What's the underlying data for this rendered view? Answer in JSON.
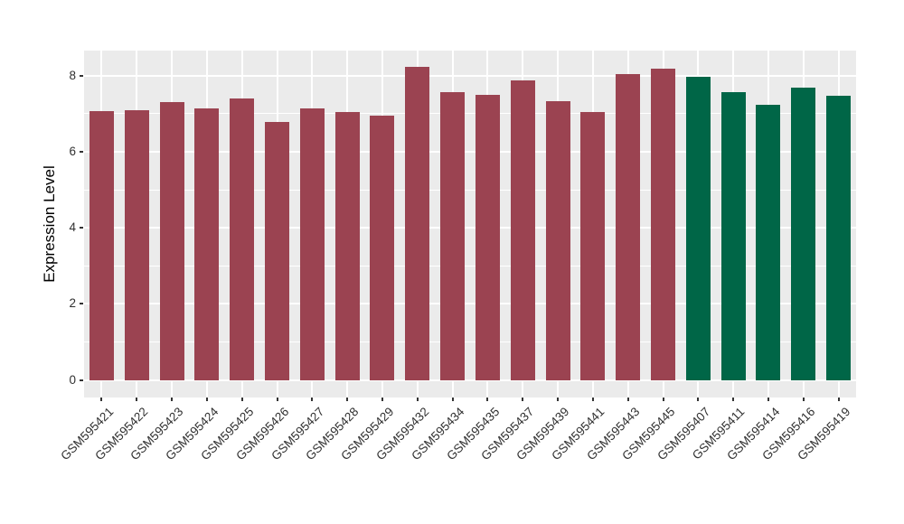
{
  "chart_data": {
    "type": "bar",
    "title": "",
    "xlabel": "",
    "ylabel": "Expression Level",
    "categories": [
      "GSM595421",
      "GSM595422",
      "GSM595423",
      "GSM595424",
      "GSM595425",
      "GSM595426",
      "GSM595427",
      "GSM595428",
      "GSM595429",
      "GSM595432",
      "GSM595434",
      "GSM595435",
      "GSM595437",
      "GSM595439",
      "GSM595441",
      "GSM595443",
      "GSM595445",
      "GSM595407",
      "GSM595411",
      "GSM595414",
      "GSM595416",
      "GSM595419"
    ],
    "values": [
      7.08,
      7.1,
      7.31,
      7.13,
      7.41,
      6.79,
      7.15,
      7.04,
      6.96,
      8.23,
      7.56,
      7.5,
      7.88,
      7.33,
      7.04,
      8.04,
      8.19,
      7.98,
      7.56,
      7.23,
      7.69,
      7.47
    ],
    "bar_groups": [
      "a",
      "a",
      "a",
      "a",
      "a",
      "a",
      "a",
      "a",
      "a",
      "a",
      "a",
      "a",
      "a",
      "a",
      "a",
      "a",
      "a",
      "b",
      "b",
      "b",
      "b",
      "b"
    ],
    "group_colors": {
      "a": "#9B4351",
      "b": "#006647"
    },
    "ytick_labels": [
      "0",
      "2",
      "4",
      "6",
      "8"
    ],
    "ytick_values": [
      0,
      2,
      4,
      6,
      8
    ],
    "yminor_values": [
      1,
      3,
      5,
      7
    ],
    "ylim": [
      -0.46,
      8.66
    ],
    "grid": "on",
    "legend_position": "none",
    "panel_bg_color": "#EBEBEB",
    "grid_color": "#FFFFFF",
    "tick_color": "#333333",
    "axis_text_color": "#303030",
    "axis_title_color": "#000000"
  }
}
